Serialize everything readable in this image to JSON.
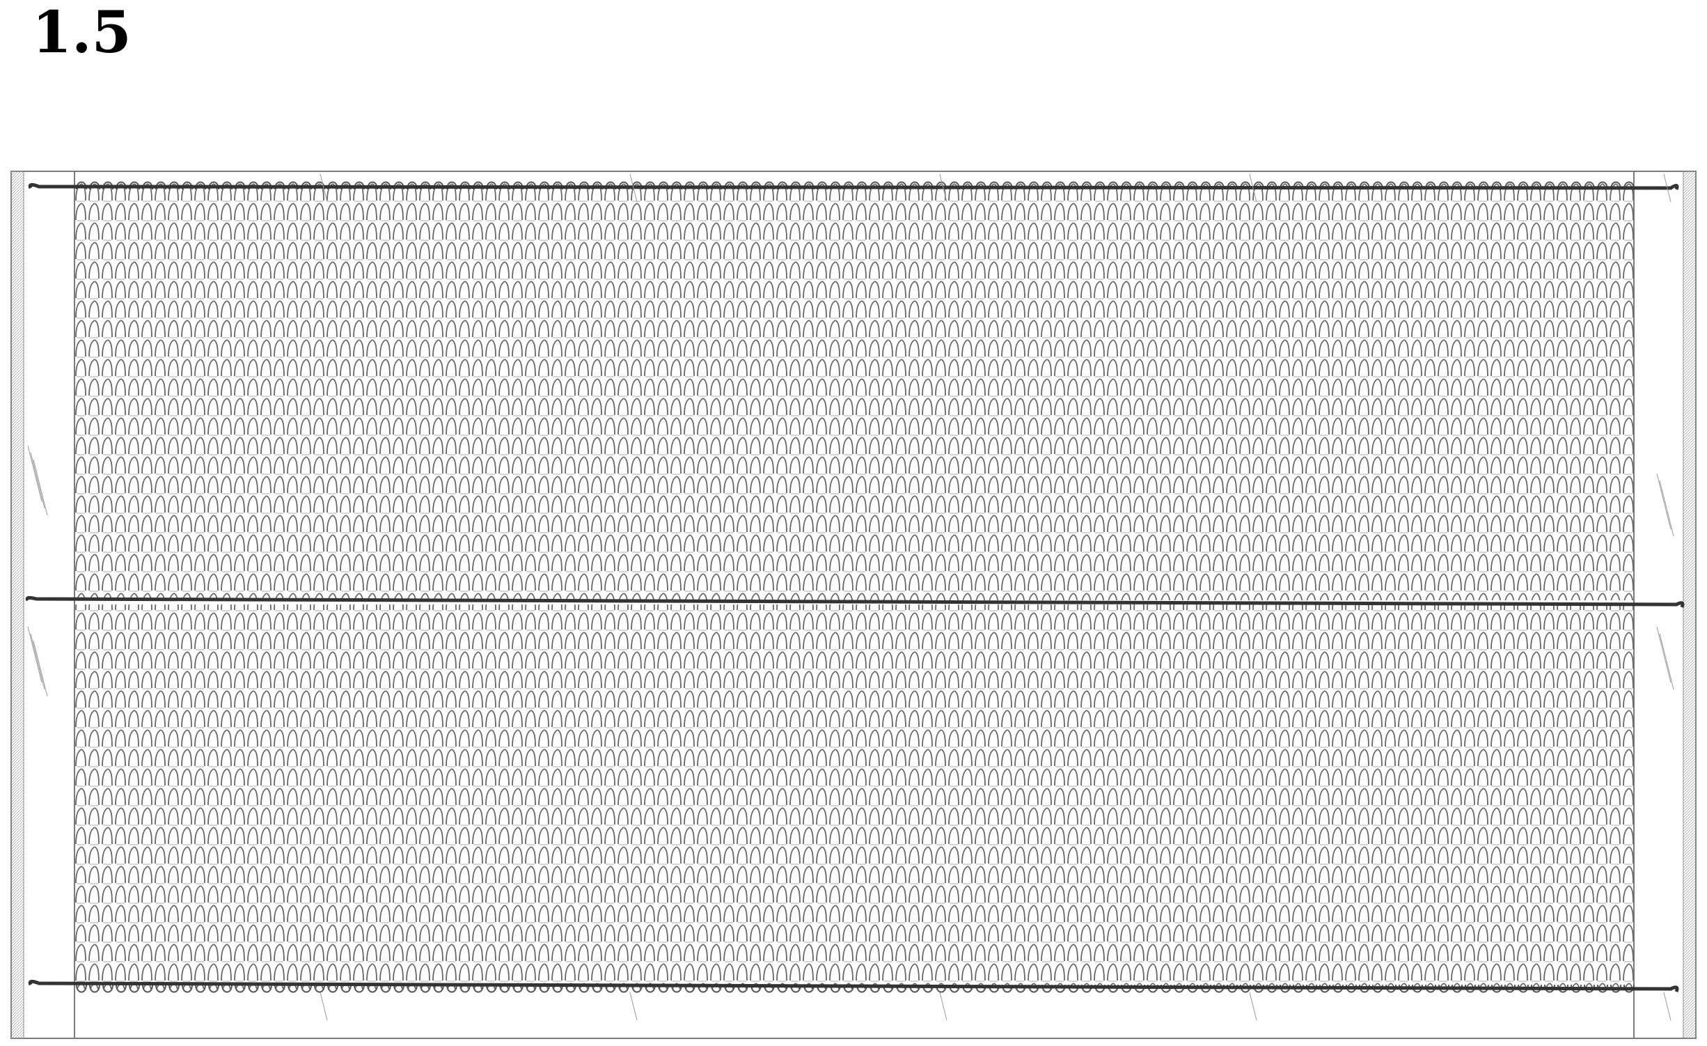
{
  "figure": {
    "label": "1.5",
    "line_color": "#333333",
    "coil_color": "#555555",
    "frame_color": "#777777"
  }
}
